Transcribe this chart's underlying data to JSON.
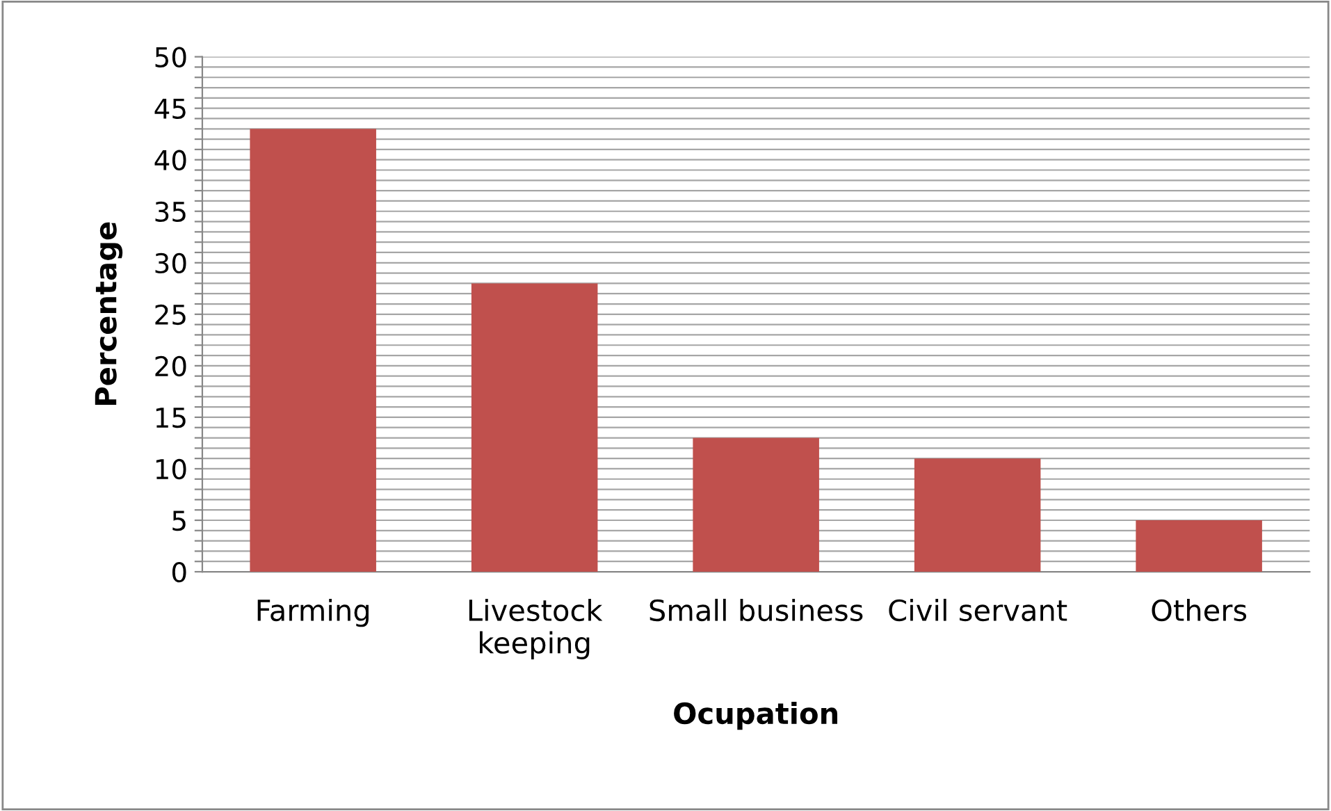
{
  "chart_data": {
    "type": "bar",
    "xlabel": "Ocupation",
    "ylabel": "Percentage",
    "categories": [
      "Farming",
      "Livestock\nkeeping",
      "Small business",
      "Civil servant",
      "Others"
    ],
    "values": [
      43,
      28,
      13,
      11,
      5
    ],
    "color": "#c0504d",
    "ylim": [
      0,
      50
    ],
    "yticks": [
      0,
      {
        "value": 1,
        "label": null
      },
      {
        "value": 2,
        "label": null
      },
      {
        "value": 3,
        "label": null
      },
      {
        "value": 4,
        "label": null
      },
      5,
      {
        "value": 6,
        "label": null
      },
      {
        "value": 7,
        "label": null
      },
      {
        "value": 8,
        "label": null
      },
      {
        "value": 9,
        "label": null
      },
      10,
      {
        "value": 11,
        "label": null
      },
      {
        "value": 12,
        "label": null
      },
      {
        "value": 13,
        "label": null
      },
      {
        "value": 14,
        "label": null
      },
      15,
      {
        "value": 16,
        "label": null
      },
      {
        "value": 17,
        "label": null
      },
      {
        "value": 18,
        "label": null
      },
      {
        "value": 19,
        "label": null
      },
      20,
      {
        "value": 21,
        "label": null
      },
      {
        "value": 22,
        "label": null
      },
      {
        "value": 23,
        "label": null
      },
      {
        "value": 24,
        "label": null
      },
      25,
      {
        "value": 26,
        "label": null
      },
      {
        "value": 27,
        "label": null
      },
      {
        "value": 28,
        "label": null
      },
      {
        "value": 29,
        "label": null
      },
      30,
      {
        "value": 31,
        "label": null
      },
      {
        "value": 32,
        "label": null
      },
      {
        "value": 33,
        "label": null
      },
      {
        "value": 34,
        "label": null
      },
      35,
      {
        "value": 36,
        "label": null
      },
      {
        "value": 37,
        "label": null
      },
      {
        "value": 38,
        "label": null
      },
      {
        "value": 39,
        "label": null
      },
      40,
      {
        "value": 41,
        "label": null
      },
      {
        "value": 42,
        "label": null
      },
      {
        "value": 43,
        "label": null
      },
      {
        "value": 44,
        "label": null
      },
      45,
      {
        "value": 46,
        "label": null
      },
      {
        "value": 47,
        "label": null
      },
      {
        "value": 48,
        "label": null
      },
      {
        "value": 49,
        "label": null
      },
      50
    ],
    "grid": "y"
  }
}
